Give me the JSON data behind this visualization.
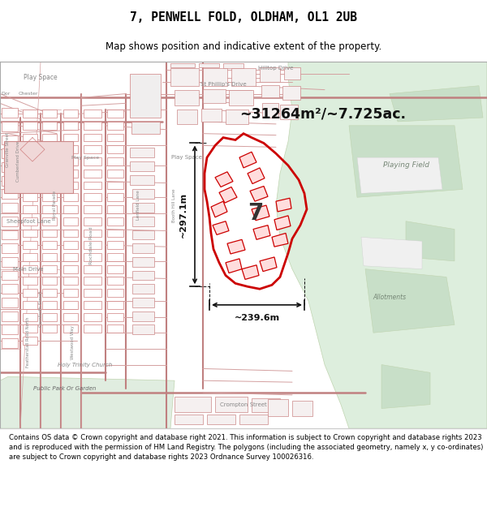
{
  "title_line1": "7, PENWELL FOLD, OLDHAM, OL1 2UB",
  "title_line2": "Map shows position and indicative extent of the property.",
  "area_text": "~31264m²/~7.725ac.",
  "width_label": "~239.6m",
  "height_label": "~297.1m",
  "number_label": "7",
  "footer_text": "Contains OS data © Crown copyright and database right 2021. This information is subject to Crown copyright and database rights 2023 and is reproduced with the permission of HM Land Registry. The polygons (including the associated geometry, namely x, y co-ordinates) are subject to Crown copyright and database rights 2023 Ordnance Survey 100026316.",
  "fig_width": 6.0,
  "fig_height": 6.25,
  "dpi": 100,
  "map_bg": "#f5f0f0",
  "road_color": "#d4a0a0",
  "road_dark": "#c08080",
  "building_face": "#ffffff",
  "building_edge": "#d08080",
  "green_color": "#ddeedd",
  "green_edge": "#c0d4b0",
  "text_color": "#888888",
  "prop_color": "#cc0000",
  "arrow_color": "#111111"
}
